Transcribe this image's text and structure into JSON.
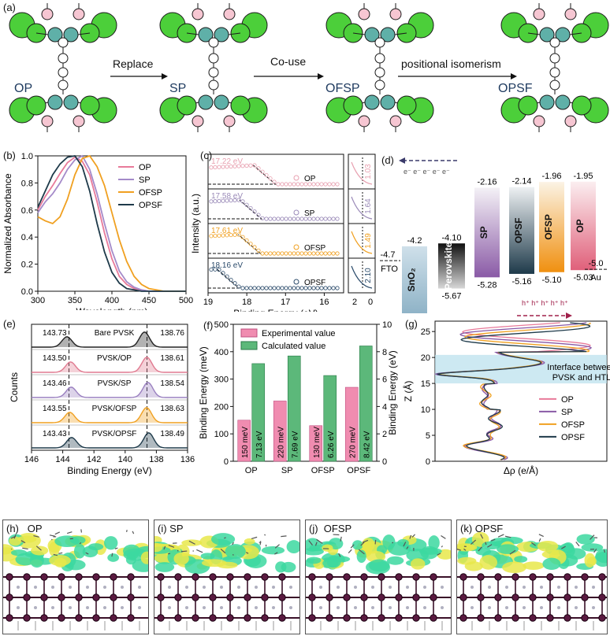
{
  "panel_a": {
    "label": "(a)",
    "molecules": [
      "OP",
      "SP",
      "OFSP",
      "OPSF"
    ],
    "arrows": [
      "Replace",
      "Co-use",
      "positional isomerism"
    ]
  },
  "panel_b": {
    "label": "(b)",
    "chart_data": {
      "type": "line",
      "xlabel": "Wavelength (nm)",
      "ylabel": "Normalized Absorbance",
      "xlim": [
        300,
        500
      ],
      "ylim": [
        0.0,
        1.0
      ],
      "xticks": [
        "300",
        "350",
        "400",
        "450",
        "500"
      ],
      "yticks": [
        "0.0",
        "0.2",
        "0.4",
        "0.6",
        "0.8",
        "1.0"
      ],
      "legend": [
        "OP",
        "SP",
        "OFSP",
        "OPSF"
      ],
      "series": [
        {
          "name": "OP",
          "color": "#e87a9a",
          "x": [
            300,
            310,
            320,
            330,
            340,
            350,
            360,
            370,
            380,
            390,
            400,
            410,
            420,
            430,
            440,
            450,
            460,
            470,
            480,
            490,
            500
          ],
          "y": [
            0.6,
            0.7,
            0.78,
            0.87,
            0.95,
            0.99,
            0.96,
            0.86,
            0.66,
            0.43,
            0.24,
            0.11,
            0.05,
            0.02,
            0.01,
            0.0,
            0.0,
            0.0,
            0.0,
            0.0,
            0.0
          ]
        },
        {
          "name": "SP",
          "color": "#a48ac9",
          "x": [
            300,
            310,
            320,
            330,
            340,
            350,
            360,
            370,
            380,
            390,
            400,
            410,
            420,
            430,
            440,
            450,
            460,
            470,
            480,
            490,
            500
          ],
          "y": [
            0.58,
            0.66,
            0.72,
            0.8,
            0.9,
            0.97,
            1.0,
            0.9,
            0.72,
            0.5,
            0.3,
            0.15,
            0.07,
            0.03,
            0.01,
            0.0,
            0.0,
            0.0,
            0.0,
            0.0,
            0.0
          ]
        },
        {
          "name": "OFSP",
          "color": "#f0a020",
          "x": [
            300,
            310,
            320,
            330,
            340,
            350,
            360,
            370,
            380,
            390,
            400,
            410,
            420,
            430,
            440,
            450,
            460,
            470,
            480,
            490,
            500
          ],
          "y": [
            0.55,
            0.52,
            0.5,
            0.55,
            0.68,
            0.86,
            0.98,
            1.0,
            0.92,
            0.78,
            0.58,
            0.38,
            0.22,
            0.11,
            0.05,
            0.02,
            0.01,
            0.0,
            0.0,
            0.0,
            0.0
          ]
        },
        {
          "name": "OPSF",
          "color": "#1e3a4a",
          "x": [
            300,
            310,
            320,
            330,
            340,
            350,
            360,
            370,
            380,
            390,
            400,
            410,
            420,
            430,
            440,
            450,
            460,
            470,
            480,
            490,
            500
          ],
          "y": [
            0.62,
            0.74,
            0.86,
            0.94,
            0.99,
            1.0,
            0.92,
            0.74,
            0.5,
            0.29,
            0.14,
            0.06,
            0.02,
            0.01,
            0.0,
            0.0,
            0.0,
            0.0,
            0.0,
            0.0,
            0.0
          ]
        }
      ]
    }
  },
  "panel_c": {
    "label": "(c)",
    "chart_data": {
      "type": "scatter",
      "xlabel": "Binding Energy (eV)",
      "ylabel": "Intensity (a.u.)",
      "xlim": [
        19,
        15.5
      ],
      "xticks": [
        "19",
        "18",
        "17",
        "16"
      ],
      "inset_xticks": [
        "2",
        "0"
      ],
      "series": [
        {
          "name": "OP",
          "color": "#e8a0b0",
          "cutoff": "17.22 eV",
          "cutoff_value": 17.22,
          "onset": "1.03",
          "onset_value": 1.03
        },
        {
          "name": "SP",
          "color": "#9a8ab8",
          "cutoff": "17.58 eV",
          "cutoff_value": 17.58,
          "onset": "1.64",
          "onset_value": 1.64
        },
        {
          "name": "OFSP",
          "color": "#f0a020",
          "cutoff": "17.61 eV",
          "cutoff_value": 17.61,
          "onset": "1.49",
          "onset_value": 1.49
        },
        {
          "name": "OPSF",
          "color": "#2a4a6a",
          "cutoff": "18.16 eV",
          "cutoff_value": 18.16,
          "onset": "2.10",
          "onset_value": 2.1
        }
      ]
    }
  },
  "panel_d": {
    "label": "(d)",
    "electrons": "e⁻ e⁻ e⁻ e⁻ e⁻",
    "holes": "h⁺ h⁺ h⁺ h⁺ h⁺",
    "fto": {
      "name": "FTO",
      "level": "-4.7"
    },
    "au": {
      "name": "Au",
      "level": "-5.0"
    },
    "bands": [
      {
        "name": "SnO₂",
        "top": "-4.2",
        "bottom": "",
        "top_value": -4.2,
        "bottom_value": -7.5,
        "c1": "#cfe0ea",
        "c2": "#8fb3c7"
      },
      {
        "name": "Perovskite",
        "top": "-4.10",
        "bottom": "-5.67",
        "top_value": -4.1,
        "bottom_value": -5.67,
        "c1": "#101010",
        "c2": "#d8d8d8"
      },
      {
        "name": "SP",
        "top": "-2.16",
        "bottom": "-5.28",
        "top_value": -2.16,
        "bottom_value": -5.28,
        "c1": "#f4f1f6",
        "c2": "#8a5aa6"
      },
      {
        "name": "OPSF",
        "top": "-2.14",
        "bottom": "-5.16",
        "top_value": -2.14,
        "bottom_value": -5.16,
        "c1": "#eef1f3",
        "c2": "#1e3a4a"
      },
      {
        "name": "OFSP",
        "top": "-1.96",
        "bottom": "-5.10",
        "top_value": -1.96,
        "bottom_value": -5.1,
        "c1": "#fbf3e4",
        "c2": "#f09010"
      },
      {
        "name": "OP",
        "top": "-1.95",
        "bottom": "-5.03",
        "top_value": -1.95,
        "bottom_value": -5.03,
        "c1": "#fbeef0",
        "c2": "#e0607a"
      }
    ]
  },
  "panel_e": {
    "label": "(e)",
    "chart_data": {
      "type": "line",
      "xlabel": "Binding Energy (eV)",
      "ylabel": "Counts",
      "xlim": [
        146,
        136
      ],
      "xticks": [
        "146",
        "144",
        "142",
        "140",
        "138",
        "136"
      ],
      "series": [
        {
          "name": "Bare PVSK",
          "color": "#222222",
          "peak1": "143.73",
          "peak2": "138.76",
          "p1": 143.73,
          "p2": 138.76
        },
        {
          "name": "PVSK/OP",
          "color": "#e07a90",
          "peak1": "143.50",
          "peak2": "138.61",
          "p1": 143.5,
          "p2": 138.61
        },
        {
          "name": "PVSK/SP",
          "color": "#9a80c0",
          "peak1": "143.46",
          "peak2": "138.54",
          "p1": 143.46,
          "p2": 138.54
        },
        {
          "name": "PVSK/OFSP",
          "color": "#f0a020",
          "peak1": "143.55",
          "peak2": "138.63",
          "p1": 143.55,
          "p2": 138.63
        },
        {
          "name": "PVSK/OPSF",
          "color": "#1e3a4a",
          "peak1": "143.43",
          "peak2": "138.49",
          "p1": 143.43,
          "p2": 138.49
        }
      ]
    }
  },
  "panel_f": {
    "label": "(f)",
    "chart_data": {
      "type": "bar",
      "categories": [
        "OP",
        "SP",
        "OFSP",
        "OPSF"
      ],
      "ylabel_left": "Binding Energy (meV)",
      "ylabel_right": "Binding Energy (eV)",
      "ylim_left": [
        0,
        500
      ],
      "ylim_right": [
        0,
        10
      ],
      "yticks_left": [
        "0",
        "100",
        "200",
        "300",
        "400",
        "500"
      ],
      "yticks_right": [
        "0",
        "2",
        "4",
        "6",
        "8",
        "10"
      ],
      "series": [
        {
          "name": "Experimental value",
          "color": "#f08cb0",
          "values": [
            150,
            220,
            130,
            270
          ],
          "labels": [
            "150 meV",
            "220 meV",
            "130 meV",
            "270 meV"
          ]
        },
        {
          "name": "Calculated value",
          "color": "#5cb87a",
          "values": [
            7.13,
            7.69,
            6.26,
            8.42
          ],
          "labels": [
            "7.13 eV",
            "7.69 eV",
            "6.26 eV",
            "8.42 eV"
          ]
        }
      ]
    }
  },
  "panel_g": {
    "label": "(g)",
    "chart_data": {
      "type": "line",
      "xlabel": "Δρ (e/Å)",
      "ylabel": "Z (Å)",
      "ylim": [
        0,
        27
      ],
      "yticks": [
        "0",
        "5",
        "10",
        "15",
        "20",
        "25"
      ],
      "annotation": "Interface between PVSK and HTL",
      "legend": [
        "OP",
        "SP",
        "OFSP",
        "OPSF"
      ],
      "series": [
        {
          "name": "OP",
          "color": "#e87a9a"
        },
        {
          "name": "SP",
          "color": "#8a5aa6"
        },
        {
          "name": "OFSP",
          "color": "#f0a020"
        },
        {
          "name": "OPSF",
          "color": "#1e3a4a"
        }
      ]
    }
  },
  "snapshots": [
    {
      "label": "(h)",
      "name": "OP"
    },
    {
      "label": "(i)",
      "name": "SP"
    },
    {
      "label": "(j)",
      "name": "OFSP"
    },
    {
      "label": "(k)",
      "name": "OPSF"
    }
  ]
}
